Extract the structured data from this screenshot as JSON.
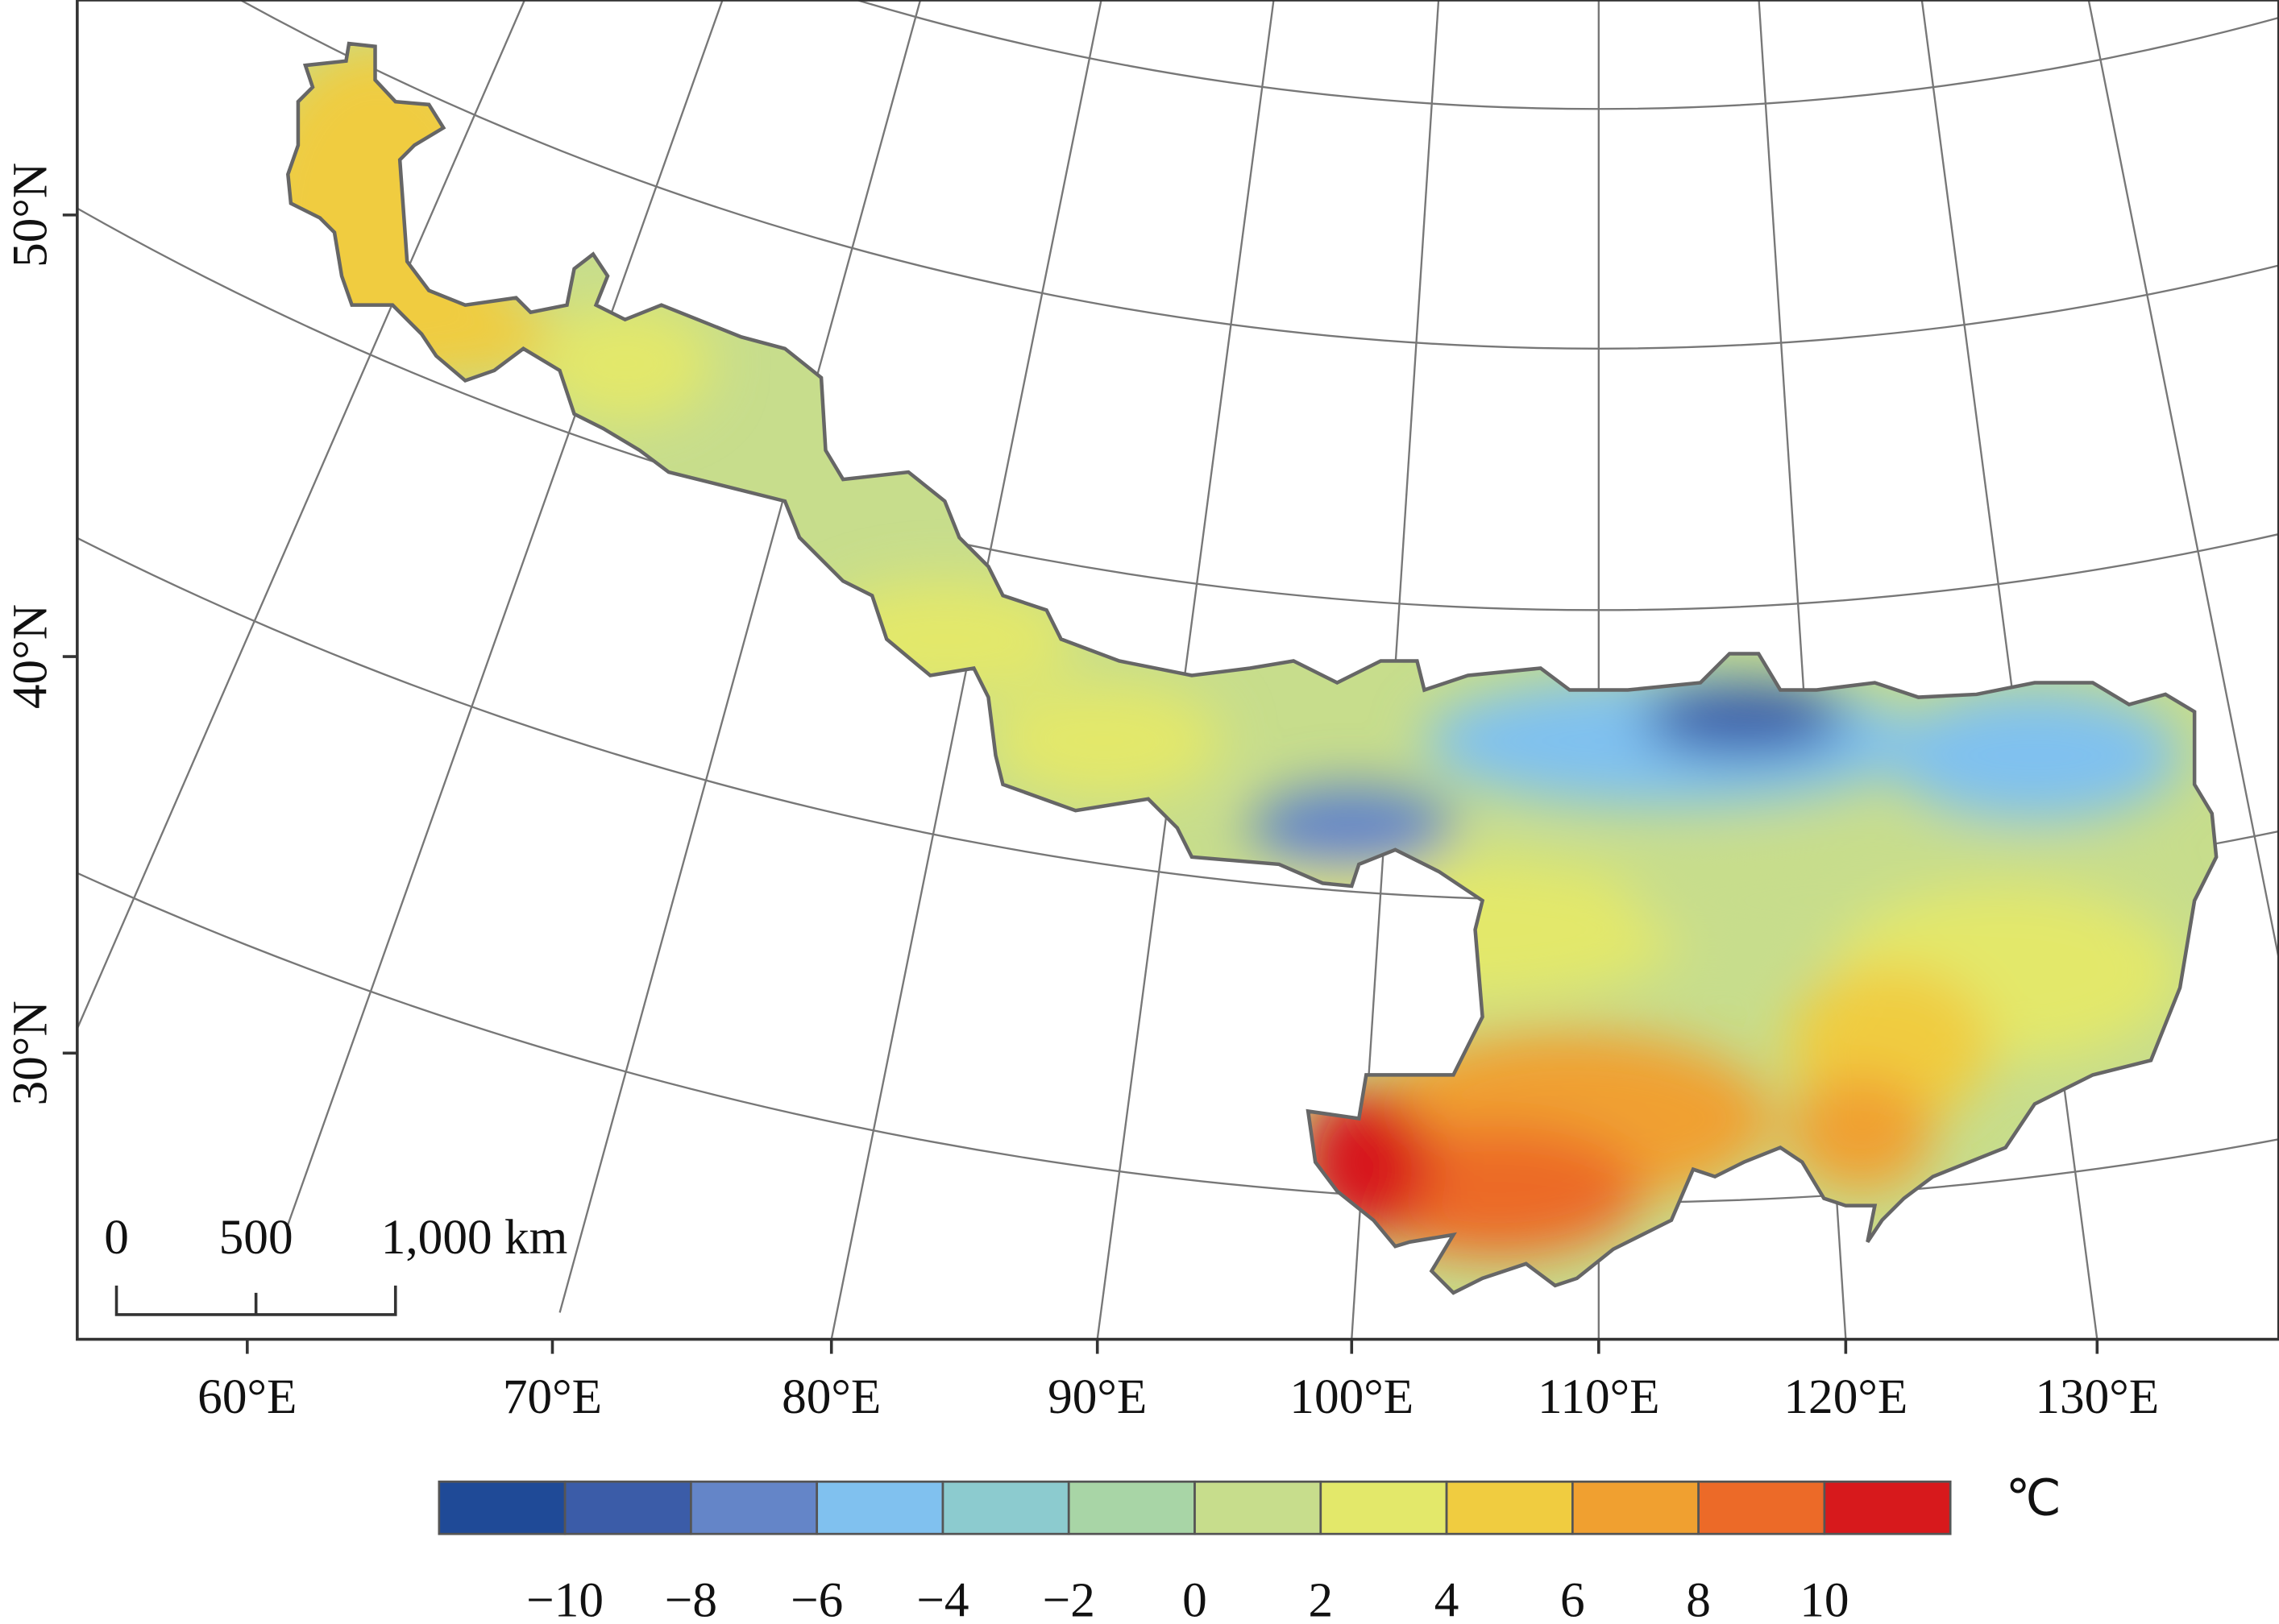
{
  "map": {
    "latitude_labels": [
      "50°N",
      "40°N",
      "30°N"
    ],
    "longitude_labels": [
      "60°E",
      "70°E",
      "80°E",
      "90°E",
      "100°E",
      "110°E",
      "120°E",
      "130°E"
    ],
    "scale_bar": {
      "labels": [
        "0",
        "500",
        "1,000 km"
      ]
    },
    "legend": {
      "unit": "℃",
      "range": [
        -12,
        12
      ],
      "colors": [
        "#1f4a97",
        "#3b5ca8",
        "#6485c8",
        "#80c1ef",
        "#8ccbcf",
        "#a8d5a6",
        "#c7dd8c",
        "#e3e86a",
        "#f0cc40",
        "#f0a030",
        "#ec6a28",
        "#d7191c"
      ],
      "ticks": [
        {
          "value": -10,
          "label": "−10"
        },
        {
          "value": -8,
          "label": "−8"
        },
        {
          "value": -6,
          "label": "−6"
        },
        {
          "value": -4,
          "label": "−4"
        },
        {
          "value": -2,
          "label": "−2"
        },
        0,
        2,
        4,
        6,
        8,
        10
      ]
    }
  }
}
